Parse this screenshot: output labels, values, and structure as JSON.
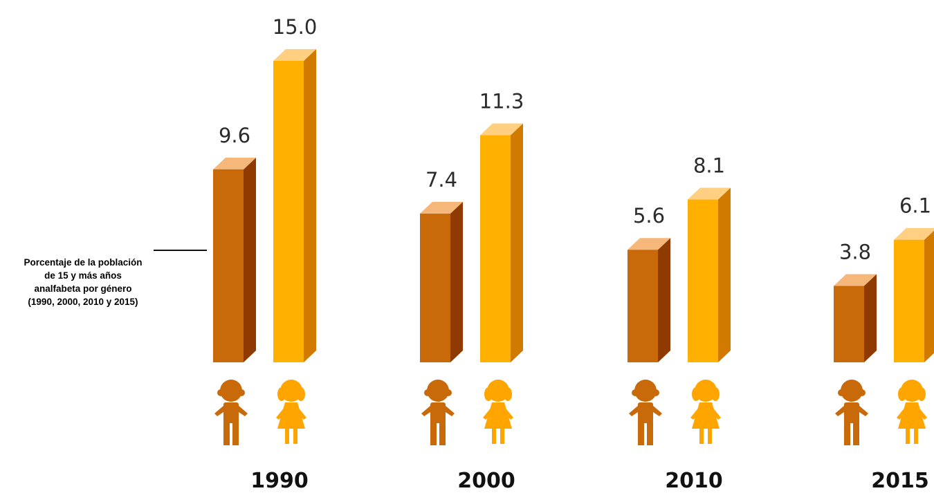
{
  "annotation": {
    "lines": [
      "Porcentaje de la población",
      "de 15 y más años",
      "analfabeta por género",
      "(1990, 2000, 2010 y 2015)"
    ]
  },
  "colors": {
    "men_front": "#C8690A",
    "men_side": "#8E3A00",
    "men_top": "#F6B77A",
    "women_front": "#FFB000",
    "women_side": "#D07A00",
    "women_top": "#FFCF82",
    "men_icon": "#C8690A",
    "women_icon": "#FFA500"
  },
  "icons": [
    "boy-icon",
    "girl-icon"
  ],
  "chart_data": {
    "type": "bar",
    "title": "Porcentaje de la población de 15 y más años analfabeta por género (1990, 2000, 2010 y 2015)",
    "categories": [
      "1990",
      "2000",
      "2010",
      "2015"
    ],
    "series": [
      {
        "key": "men",
        "values": [
          9.6,
          7.4,
          5.6,
          3.8
        ]
      },
      {
        "key": "women",
        "values": [
          15.0,
          11.3,
          8.1,
          6.1
        ]
      }
    ],
    "value_labels": {
      "men": [
        "9.6",
        "7.4",
        "5.6",
        "3.8"
      ],
      "women": [
        "15.0",
        "11.3",
        "8.1",
        "6.1"
      ]
    },
    "ylim": [
      0,
      15
    ],
    "grid": false,
    "legend": "none"
  }
}
